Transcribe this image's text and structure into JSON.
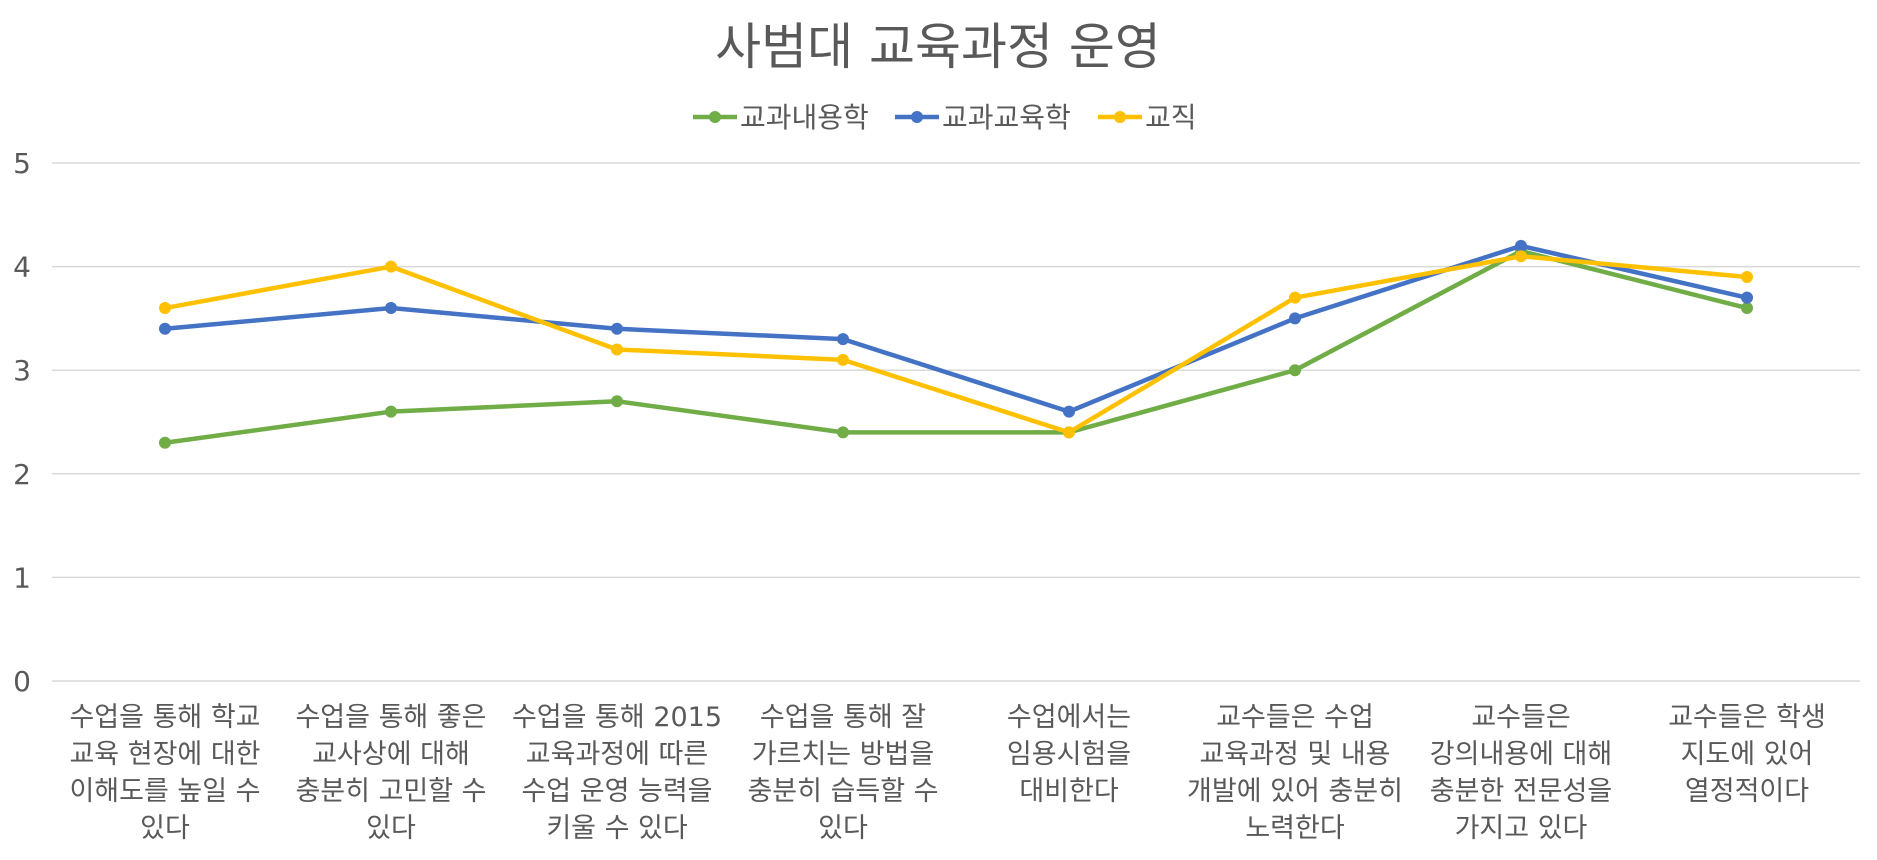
{
  "chart_data": {
    "type": "line",
    "title": "사범대 교육과정 운영",
    "xlabel": "",
    "ylabel": "",
    "ylim": [
      0,
      5
    ],
    "yticks": [
      0,
      1,
      2,
      3,
      4,
      5
    ],
    "grid": true,
    "legend_position": "top",
    "categories": [
      [
        "수업을 통해 학교",
        "교육 현장에 대한",
        "이해도를 높일 수",
        "있다"
      ],
      [
        "수업을 통해 좋은",
        "교사상에 대해",
        "충분히 고민할 수",
        "있다"
      ],
      [
        "수업을 통해 2015",
        "교육과정에 따른",
        "수업 운영 능력을",
        "키울 수 있다"
      ],
      [
        "수업을 통해 잘",
        "가르치는 방법을",
        "충분히 습득할 수",
        "있다"
      ],
      [
        "수업에서는",
        "임용시험을",
        "대비한다"
      ],
      [
        "교수들은 수업",
        "교육과정 및 내용",
        "개발에 있어 충분히",
        "노력한다"
      ],
      [
        "교수들은",
        "강의내용에 대해",
        "충분한 전문성을",
        "가지고 있다"
      ],
      [
        "교수들은 학생",
        "지도에 있어",
        "열정적이다"
      ]
    ],
    "series": [
      {
        "name": "교과내용학",
        "color": "#70ad47",
        "values": [
          2.3,
          2.6,
          2.7,
          2.4,
          2.4,
          3.0,
          4.15,
          3.6
        ]
      },
      {
        "name": "교과교육학",
        "color": "#4472c4",
        "values": [
          3.4,
          3.6,
          3.4,
          3.3,
          2.6,
          3.5,
          4.2,
          3.7
        ]
      },
      {
        "name": "교직",
        "color": "#ffc000",
        "values": [
          3.6,
          4.0,
          3.2,
          3.1,
          2.4,
          3.7,
          4.1,
          3.9
        ]
      }
    ]
  }
}
